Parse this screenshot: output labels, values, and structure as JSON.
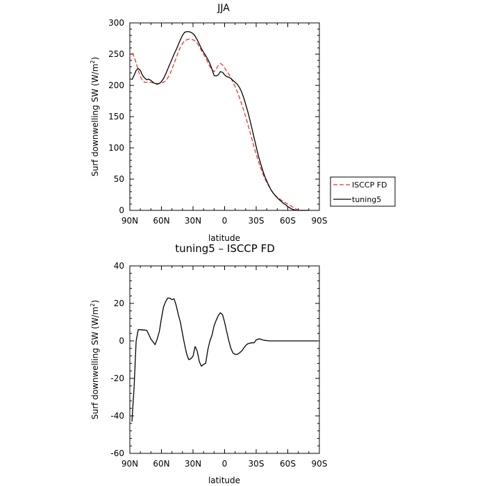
{
  "chart_data": [
    {
      "type": "line",
      "title": "JJA",
      "xlabel": "latitude",
      "ylabel_main": "Surf downwelling SW (W/m",
      "ylabel_sup": "2",
      "ylabel_tail": ")",
      "xlim": [
        90,
        -90
      ],
      "ylim": [
        0,
        300
      ],
      "x_tick_labels": [
        "90N",
        "60N",
        "30N",
        "0",
        "30S",
        "60S",
        "90S"
      ],
      "x_tick_values": [
        90,
        60,
        30,
        0,
        -30,
        -60,
        -90
      ],
      "y_ticks": [
        0,
        50,
        100,
        150,
        200,
        250,
        300
      ],
      "legend_position": "right",
      "series": [
        {
          "name": "ISCCP FD",
          "color": "#e8352c",
          "dash": "dashed",
          "x": [
            88,
            86,
            84,
            82,
            80,
            78,
            76,
            74,
            72,
            70,
            68,
            66,
            64,
            62,
            60,
            58,
            56,
            54,
            52,
            50,
            48,
            46,
            44,
            42,
            40,
            38,
            36,
            34,
            32,
            30,
            28,
            26,
            24,
            22,
            20,
            18,
            16,
            14,
            12,
            10,
            8,
            6,
            4,
            2,
            0,
            -2,
            -4,
            -6,
            -8,
            -10,
            -12,
            -14,
            -16,
            -18,
            -20,
            -22,
            -24,
            -26,
            -28,
            -30,
            -32,
            -34,
            -36,
            -38,
            -40,
            -42,
            -44,
            -46,
            -48,
            -50,
            -52,
            -54,
            -56,
            -58,
            -60,
            -62,
            -64,
            -66,
            -68,
            -70,
            -72,
            -74,
            -76,
            -78,
            -80
          ],
          "values": [
            252,
            246,
            236,
            224,
            214,
            208,
            205,
            205,
            205,
            205,
            204,
            203,
            203,
            203,
            204,
            205,
            207,
            212,
            218,
            226,
            235,
            244,
            253,
            261,
            267,
            271,
            273,
            274,
            274,
            273,
            271,
            267,
            262,
            256,
            250,
            244,
            237,
            230,
            225,
            222,
            226,
            232,
            235,
            233,
            228,
            223,
            218,
            212,
            205,
            198,
            190,
            181,
            171,
            161,
            150,
            138,
            126,
            114,
            101,
            90,
            79,
            69,
            60,
            52,
            45,
            39,
            33,
            28,
            24,
            21,
            19,
            16,
            14,
            12,
            10,
            8,
            6,
            4,
            2,
            1,
            0,
            0,
            0,
            0,
            0
          ]
        },
        {
          "name": "tuning5",
          "color": "#000000",
          "dash": "solid",
          "x": [
            88,
            86,
            84,
            82,
            80,
            78,
            76,
            74,
            72,
            70,
            68,
            66,
            64,
            62,
            60,
            58,
            56,
            54,
            52,
            50,
            48,
            46,
            44,
            42,
            40,
            38,
            36,
            34,
            32,
            30,
            28,
            26,
            24,
            22,
            20,
            18,
            16,
            14,
            12,
            10,
            8,
            6,
            4,
            2,
            0,
            -2,
            -4,
            -6,
            -8,
            -10,
            -12,
            -14,
            -16,
            -18,
            -20,
            -22,
            -24,
            -26,
            -28,
            -30,
            -32,
            -34,
            -36,
            -38,
            -40,
            -42,
            -44,
            -46,
            -48,
            -50,
            -52,
            -54,
            -56,
            -58,
            -60,
            -62,
            -64,
            -66,
            -68,
            -70,
            -72,
            -74,
            -76,
            -78,
            -80
          ],
          "values": [
            209,
            216,
            224,
            227,
            224,
            216,
            212,
            209,
            210,
            208,
            205,
            203,
            202,
            203,
            206,
            211,
            218,
            226,
            234,
            242,
            250,
            257,
            265,
            273,
            280,
            285,
            286,
            286,
            285,
            283,
            279,
            273,
            266,
            259,
            253,
            248,
            242,
            235,
            226,
            216,
            215,
            217,
            222,
            221,
            217,
            214,
            213,
            211,
            208,
            205,
            202,
            197,
            190,
            181,
            170,
            158,
            145,
            131,
            116,
            102,
            88,
            76,
            65,
            55,
            47,
            40,
            33,
            28,
            24,
            20,
            17,
            14,
            11,
            9,
            6,
            4,
            2,
            1,
            0,
            0,
            0,
            0,
            0,
            0,
            0
          ]
        }
      ]
    },
    {
      "type": "line",
      "title": "tuning5 – ISCCP FD",
      "xlabel": "latitude",
      "ylabel_main": "Surf downwelling SW (W/m",
      "ylabel_sup": "2",
      "ylabel_tail": ")",
      "xlim": [
        90,
        -90
      ],
      "ylim": [
        -60,
        40
      ],
      "x_tick_labels": [
        "90N",
        "60N",
        "30N",
        "0",
        "30S",
        "60S",
        "90S"
      ],
      "x_tick_values": [
        90,
        60,
        30,
        0,
        -30,
        -60,
        -90
      ],
      "y_ticks": [
        -60,
        -40,
        -20,
        0,
        20,
        40
      ],
      "series": [
        {
          "name": "tuning5 – ISCCP FD",
          "color": "#000000",
          "dash": "solid",
          "x": [
            88,
            86,
            84,
            82,
            80,
            78,
            76,
            74,
            72,
            70,
            68,
            66,
            64,
            62,
            60,
            58,
            56,
            54,
            52,
            50,
            48,
            46,
            44,
            42,
            40,
            38,
            36,
            34,
            32,
            30,
            28,
            26,
            24,
            22,
            20,
            18,
            16,
            14,
            12,
            10,
            8,
            6,
            4,
            2,
            0,
            -2,
            -4,
            -6,
            -8,
            -10,
            -12,
            -14,
            -16,
            -18,
            -20,
            -22,
            -24,
            -26,
            -28,
            -30,
            -32,
            -34,
            -36,
            -38,
            -40,
            -42,
            -44,
            -46,
            -48,
            -50,
            -52,
            -54,
            -56,
            -58,
            -60,
            -62,
            -64,
            -66,
            -68,
            -70,
            -72,
            -74,
            -76,
            -78,
            -80,
            -82,
            -84,
            -86,
            -88
          ],
          "values": [
            -43,
            -25,
            0,
            6,
            6,
            5.8,
            5.8,
            5.6,
            3.5,
            1,
            -0.5,
            -2,
            1,
            5,
            12,
            18,
            21,
            22.8,
            22.8,
            22,
            22.5,
            19,
            14,
            10,
            4,
            -2,
            -7,
            -10,
            -9.5,
            -8.2,
            -3,
            -5.5,
            -11,
            -13.5,
            -12.5,
            -12,
            -5,
            0,
            3,
            8,
            11,
            13.5,
            15,
            14,
            10,
            5,
            0,
            -4,
            -6.5,
            -7.2,
            -7.2,
            -6.5,
            -5.5,
            -4,
            -2.5,
            -1.5,
            -1.2,
            -1,
            -1,
            0.5,
            1,
            1,
            0.5,
            0.3,
            0.2,
            0,
            0,
            0,
            0,
            0,
            0,
            0,
            0,
            0,
            0,
            0,
            0,
            0,
            0,
            0,
            0,
            0,
            0,
            0,
            0,
            0,
            0,
            0,
            0
          ]
        }
      ]
    }
  ]
}
